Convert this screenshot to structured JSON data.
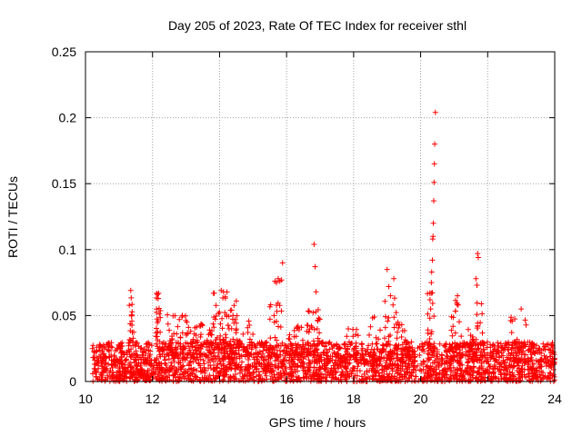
{
  "chart_data": {
    "type": "scatter",
    "title": "Day 205 of 2023, Rate Of TEC Index for receiver sthl",
    "xlabel": "GPS time / hours",
    "ylabel": "ROTI / TECUs",
    "xlim": [
      10,
      24
    ],
    "ylim": [
      0,
      0.25
    ],
    "x_ticks": [
      10,
      12,
      14,
      16,
      18,
      20,
      22,
      24
    ],
    "x_tick_labels": [
      "10",
      "12",
      "14",
      "16",
      "18",
      "20",
      "22",
      "24"
    ],
    "y_ticks": [
      0,
      0.05,
      0.1,
      0.15,
      0.2,
      0.25
    ],
    "y_tick_labels": [
      "0",
      "0.05",
      "0.1",
      "0.15",
      "0.2",
      "0.25"
    ],
    "grid": true,
    "marker": "+",
    "color": "#ff0000",
    "background_noise": {
      "x_range": [
        10.2,
        24.0
      ],
      "y_range": [
        0.0,
        0.03
      ],
      "count": 2600
    },
    "clusters": [
      {
        "x_range": [
          11.3,
          11.45
        ],
        "y_range": [
          0.03,
          0.068
        ],
        "count": 18
      },
      {
        "x_range": [
          12.1,
          12.25
        ],
        "y_range": [
          0.03,
          0.067
        ],
        "count": 22
      },
      {
        "x_range": [
          12.4,
          13.0
        ],
        "y_range": [
          0.02,
          0.052
        ],
        "count": 45
      },
      {
        "x_range": [
          13.0,
          13.8
        ],
        "y_range": [
          0.02,
          0.045
        ],
        "count": 50
      },
      {
        "x_range": [
          13.8,
          14.6
        ],
        "y_range": [
          0.025,
          0.068
        ],
        "count": 70
      },
      {
        "x_range": [
          14.6,
          15.0
        ],
        "y_range": [
          0.02,
          0.05
        ],
        "count": 20
      },
      {
        "x_range": [
          15.5,
          15.9
        ],
        "y_range": [
          0.02,
          0.06
        ],
        "count": 28
      },
      {
        "x_range": [
          16.0,
          16.5
        ],
        "y_range": [
          0.02,
          0.045
        ],
        "count": 25
      },
      {
        "x_range": [
          16.6,
          17.0
        ],
        "y_range": [
          0.02,
          0.058
        ],
        "count": 35
      },
      {
        "x_range": [
          17.6,
          18.3
        ],
        "y_range": [
          0.015,
          0.04
        ],
        "count": 28
      },
      {
        "x_range": [
          18.4,
          18.8
        ],
        "y_range": [
          0.015,
          0.05
        ],
        "count": 22
      },
      {
        "x_range": [
          18.9,
          19.3
        ],
        "y_range": [
          0.02,
          0.065
        ],
        "count": 30
      },
      {
        "x_range": [
          19.3,
          19.8
        ],
        "y_range": [
          0.015,
          0.045
        ],
        "count": 25
      },
      {
        "x_range": [
          20.2,
          20.4
        ],
        "y_range": [
          0.02,
          0.07
        ],
        "count": 24
      },
      {
        "x_range": [
          20.9,
          21.3
        ],
        "y_range": [
          0.015,
          0.065
        ],
        "count": 22
      },
      {
        "x_range": [
          21.4,
          21.9
        ],
        "y_range": [
          0.015,
          0.06
        ],
        "count": 35
      },
      {
        "x_range": [
          22.6,
          23.2
        ],
        "y_range": [
          0.015,
          0.05
        ],
        "count": 30
      }
    ],
    "spikes": [
      [
        15.75,
        0.078
      ],
      [
        15.8,
        0.076
      ],
      [
        15.85,
        0.077
      ],
      [
        15.88,
        0.09
      ],
      [
        15.65,
        0.076
      ],
      [
        15.7,
        0.075
      ],
      [
        16.82,
        0.104
      ],
      [
        16.85,
        0.087
      ],
      [
        16.88,
        0.068
      ],
      [
        19.0,
        0.085
      ],
      [
        19.05,
        0.072
      ],
      [
        19.1,
        0.065
      ],
      [
        19.2,
        0.078
      ],
      [
        20.28,
        0.062
      ],
      [
        20.3,
        0.055
      ],
      [
        20.32,
        0.075
      ],
      [
        20.33,
        0.083
      ],
      [
        20.35,
        0.092
      ],
      [
        20.36,
        0.108
      ],
      [
        20.37,
        0.11
      ],
      [
        20.38,
        0.12
      ],
      [
        20.39,
        0.137
      ],
      [
        20.4,
        0.151
      ],
      [
        20.41,
        0.165
      ],
      [
        20.42,
        0.18
      ],
      [
        20.44,
        0.204
      ],
      [
        21.1,
        0.065
      ],
      [
        21.12,
        0.058
      ],
      [
        21.65,
        0.078
      ],
      [
        21.68,
        0.073
      ],
      [
        21.7,
        0.097
      ],
      [
        21.72,
        0.094
      ],
      [
        23.0,
        0.055
      ],
      [
        11.35,
        0.069
      ],
      [
        12.15,
        0.066
      ],
      [
        14.05,
        0.069
      ],
      [
        14.5,
        0.061
      ]
    ]
  }
}
